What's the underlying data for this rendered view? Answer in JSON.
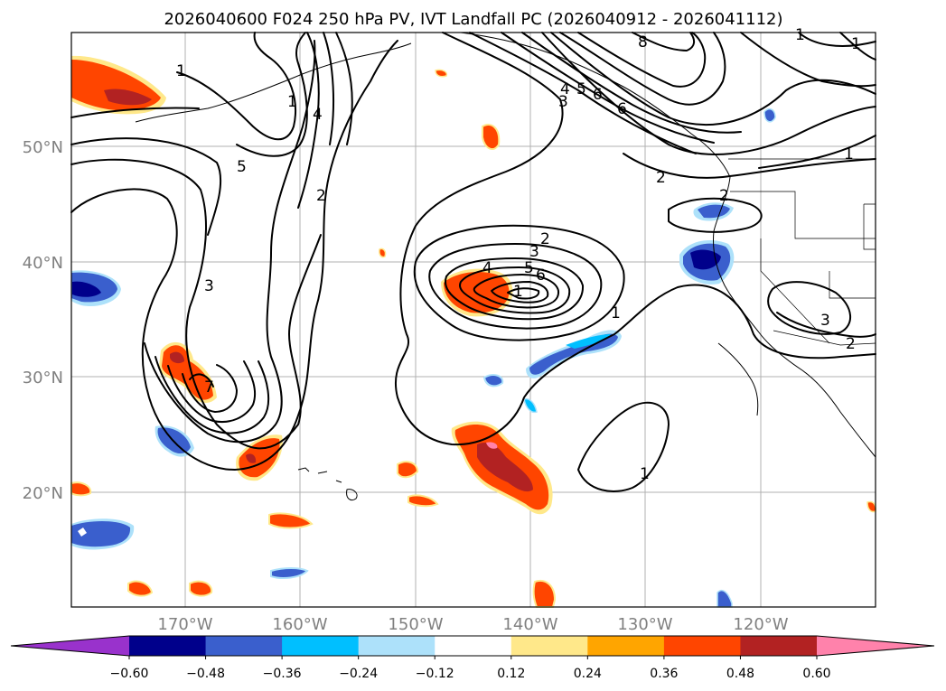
{
  "title": "2026040600 F024 250 hPa PV, IVT Landfall PC (2026040912 - 2026041112)",
  "map": {
    "lat_ticks": [
      "50°N",
      "40°N",
      "30°N",
      "20°N"
    ],
    "lon_ticks": [
      "170°W",
      "160°W",
      "150°W",
      "140°W",
      "130°W",
      "120°W"
    ]
  },
  "contour_labels": [
    "1",
    "1",
    "2",
    "3",
    "4",
    "5",
    "6",
    "7",
    "8",
    "1",
    "1",
    "2",
    "1",
    "2",
    "3",
    "4",
    "5",
    "6",
    "1",
    "4",
    "5",
    "6",
    "3",
    "3",
    "2",
    "1",
    "1",
    "2"
  ],
  "colorbar": {
    "ticks": [
      "−0.60",
      "−0.48",
      "−0.36",
      "−0.24",
      "−0.12",
      "0.12",
      "0.24",
      "0.36",
      "0.48",
      "0.60"
    ],
    "colors": [
      "#9932CC",
      "#00008B",
      "#3A5FCD",
      "#00BFFF",
      "#ADE1FA",
      "#FFFFFF",
      "#FFE88A",
      "#FFA500",
      "#FF4500",
      "#B22222",
      "#FF82AB"
    ]
  },
  "colors": {
    "land_outline": "#000000",
    "grid": "#b0b0b0",
    "axis_text": "#808080"
  }
}
